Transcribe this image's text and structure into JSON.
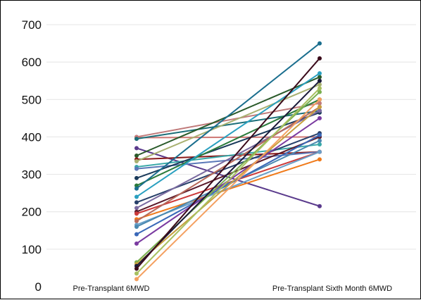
{
  "chart_data": {
    "type": "line",
    "title": "",
    "xlabel": "",
    "ylabel": "",
    "categories": [
      "Pre-Transplant 6MWD",
      "Pre-Transplant Sixth Month 6MWD"
    ],
    "ylim": [
      0,
      700
    ],
    "yticks": [
      0,
      100,
      200,
      300,
      400,
      500,
      600,
      700
    ],
    "grid": true,
    "legend": "none",
    "series": [
      {
        "values": [
          400,
          490
        ],
        "color": "#c07a7a"
      },
      {
        "values": [
          398,
          400
        ],
        "color": "#d07a76"
      },
      {
        "values": [
          395,
          470
        ],
        "color": "#1a6e78"
      },
      {
        "values": [
          370,
          215
        ],
        "color": "#5a3a8c"
      },
      {
        "values": [
          350,
          560
        ],
        "color": "#2a5a2a"
      },
      {
        "values": [
          340,
          360
        ],
        "color": "#8a1a1a"
      },
      {
        "values": [
          335,
          540
        ],
        "color": "#a8b070"
      },
      {
        "values": [
          320,
          380
        ],
        "color": "#38a8a8"
      },
      {
        "values": [
          315,
          360
        ],
        "color": "#5a78b8"
      },
      {
        "values": [
          290,
          465
        ],
        "color": "#1a3a5a"
      },
      {
        "values": [
          270,
          500
        ],
        "color": "#2a7a3a"
      },
      {
        "values": [
          262,
          650
        ],
        "color": "#1a6e8e"
      },
      {
        "values": [
          240,
          570
        ],
        "color": "#2aa0c0"
      },
      {
        "values": [
          225,
          410
        ],
        "color": "#28406a"
      },
      {
        "values": [
          210,
          470
        ],
        "color": "#7a6aa0"
      },
      {
        "values": [
          200,
          400
        ],
        "color": "#5a1a2a"
      },
      {
        "values": [
          195,
          360
        ],
        "color": "#cc3a3a"
      },
      {
        "values": [
          180,
          340
        ],
        "color": "#f07a1a"
      },
      {
        "values": [
          175,
          480
        ],
        "color": "#b86a5a"
      },
      {
        "values": [
          165,
          360
        ],
        "color": "#6aa0c8"
      },
      {
        "values": [
          160,
          390
        ],
        "color": "#4a88b0"
      },
      {
        "values": [
          140,
          405
        ],
        "color": "#3a68b8"
      },
      {
        "values": [
          115,
          450
        ],
        "color": "#7a3aa0"
      },
      {
        "values": [
          65,
          520
        ],
        "color": "#7ab050"
      },
      {
        "values": [
          60,
          480
        ],
        "color": "#c8a040"
      },
      {
        "values": [
          55,
          550
        ],
        "color": "#1a1a3a"
      },
      {
        "values": [
          48,
          610
        ],
        "color": "#3a0a1a"
      },
      {
        "values": [
          35,
          530
        ],
        "color": "#a8c060"
      },
      {
        "values": [
          20,
          500
        ],
        "color": "#f4a060"
      }
    ]
  }
}
